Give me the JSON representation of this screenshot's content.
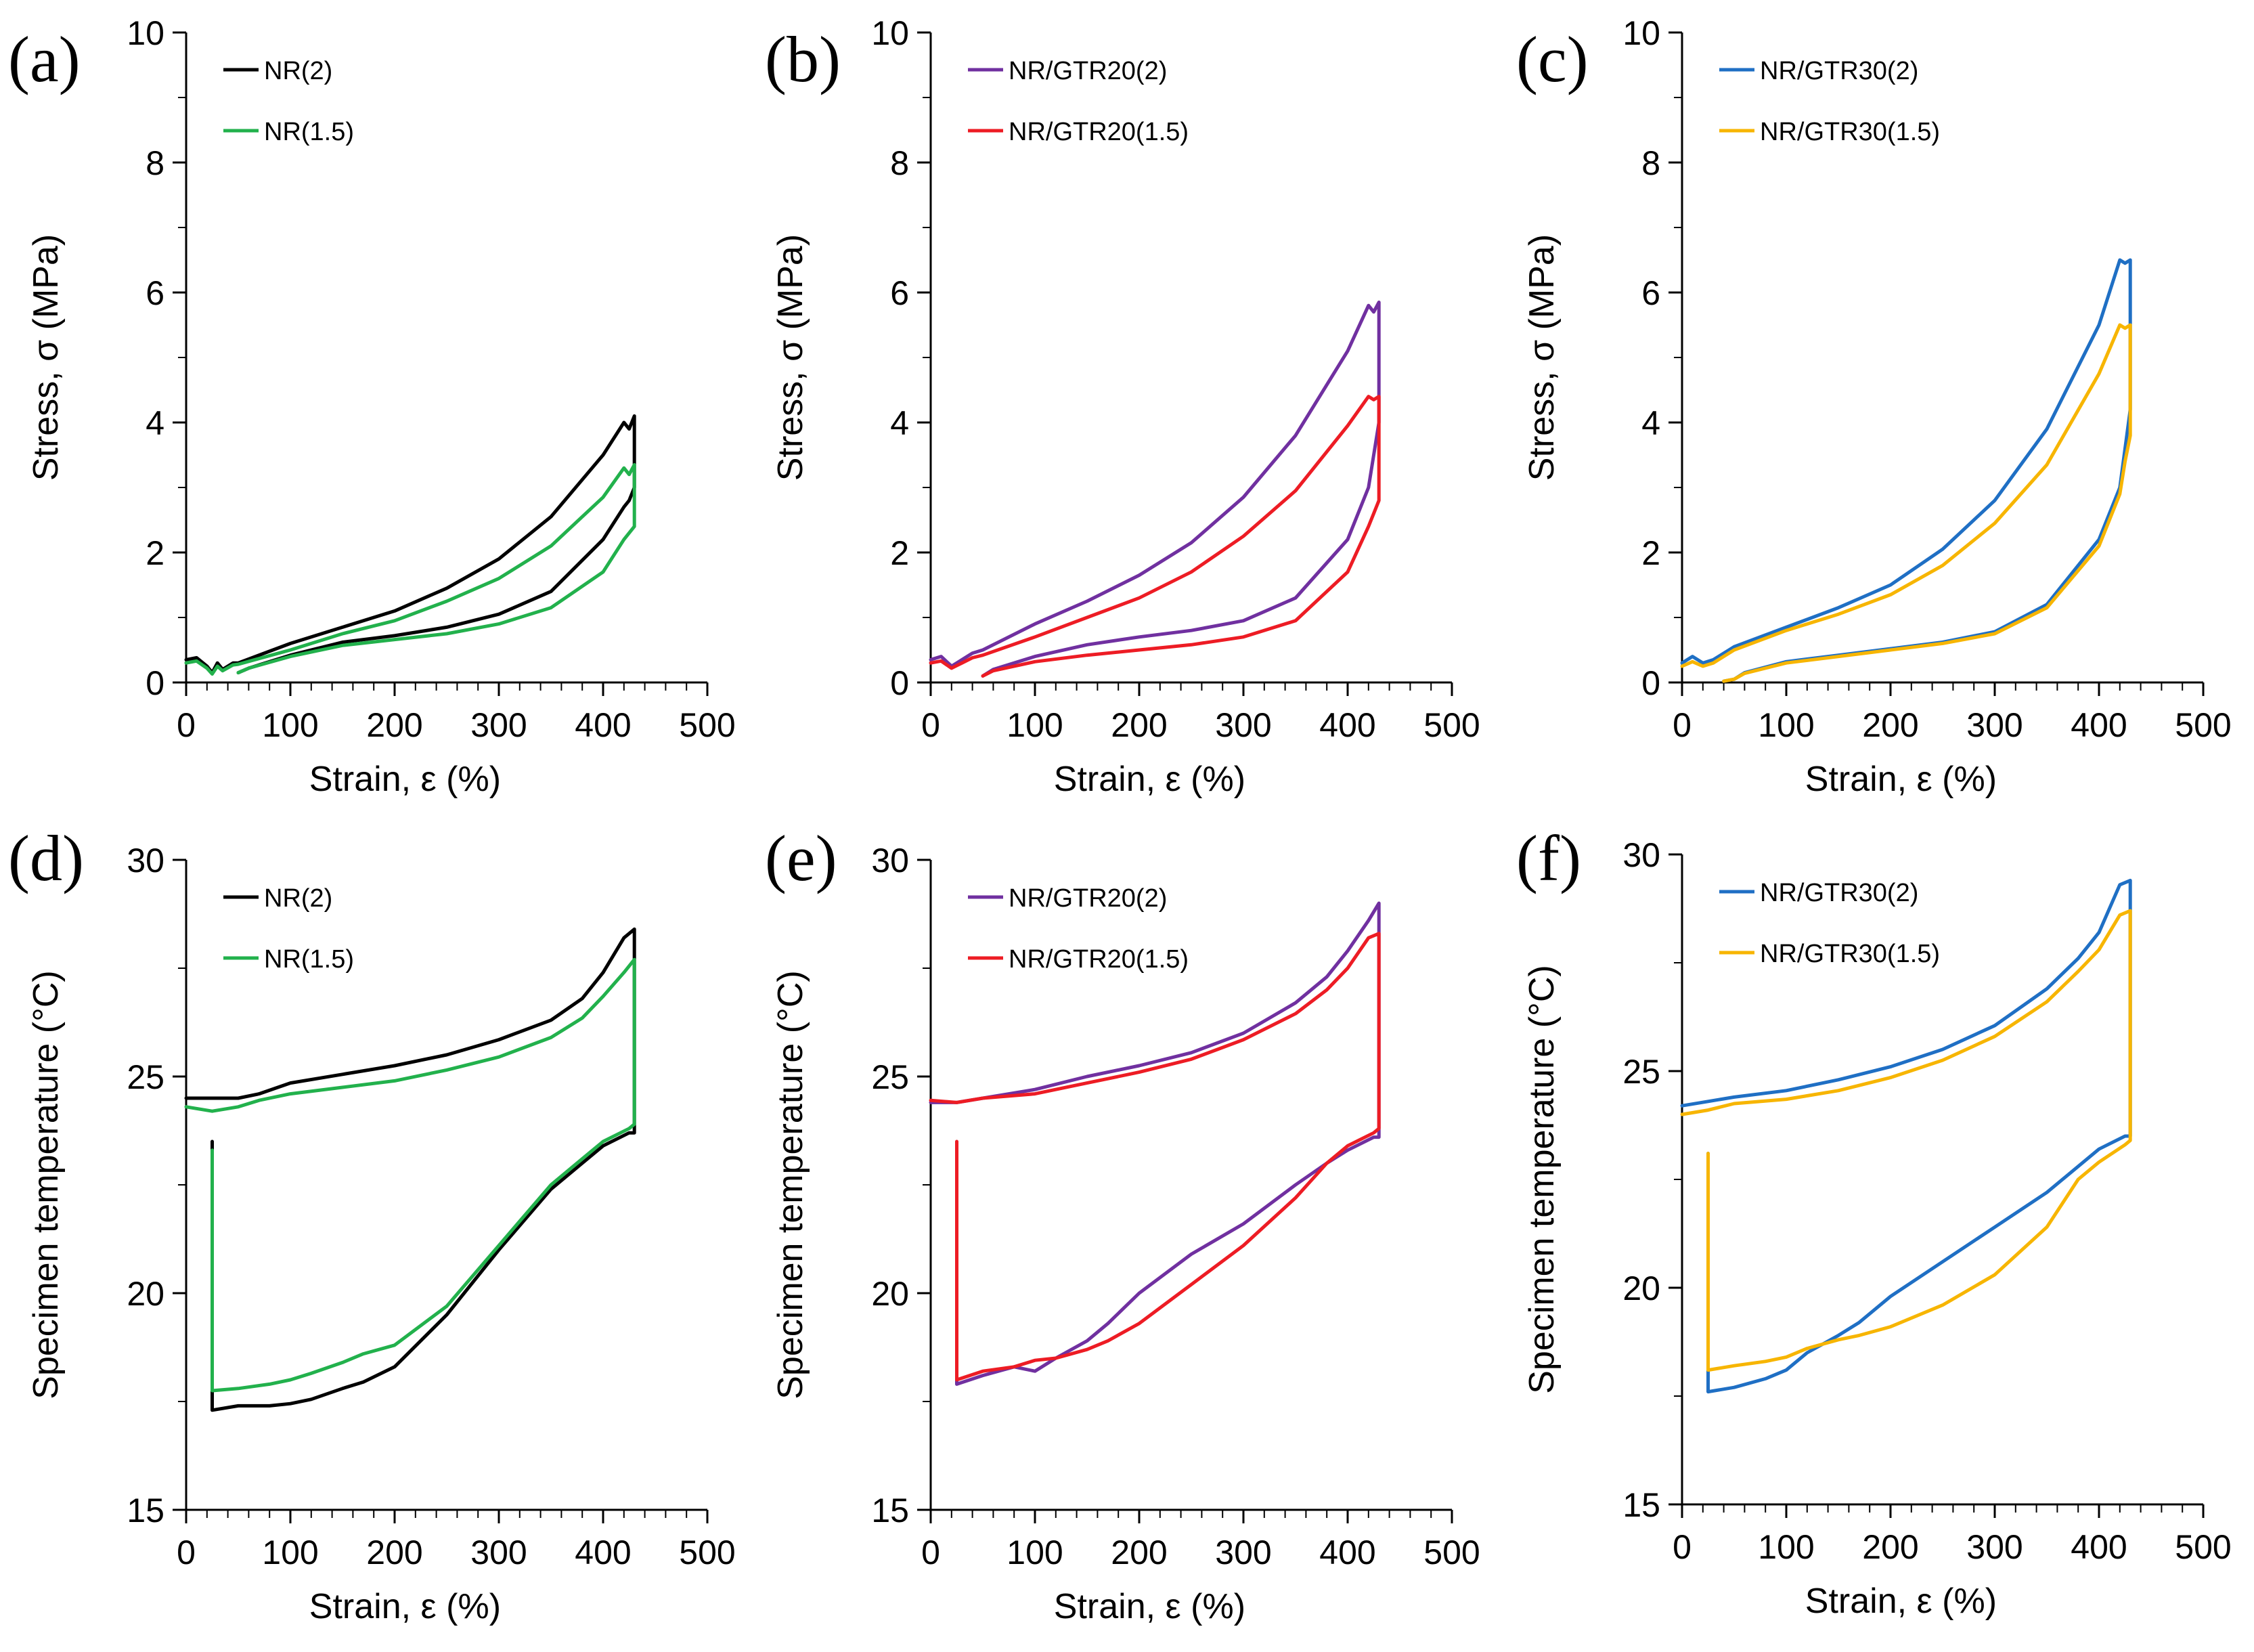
{
  "chart_data": [
    {
      "type": "line",
      "panel_label": "(a)",
      "xlabel": "Strain, ε (%)",
      "ylabel": "Stress, σ (MPa)",
      "xlim": [
        0,
        500
      ],
      "ylim": [
        0,
        10
      ],
      "xticks": [
        "0",
        "100",
        "200",
        "300",
        "400",
        "500"
      ],
      "yticks": [
        "0",
        "2",
        "4",
        "6",
        "8",
        "10"
      ],
      "legend_position": "top-left",
      "series": [
        {
          "name": "NR(2)",
          "color": "#000000",
          "x": [
            0,
            10,
            20,
            25,
            30,
            35,
            45,
            50,
            100,
            150,
            200,
            250,
            300,
            350,
            400,
            420,
            425,
            430,
            430,
            425,
            420,
            400,
            350,
            300,
            250,
            200,
            150,
            100,
            60,
            50
          ],
          "y": [
            0.35,
            0.38,
            0.25,
            0.15,
            0.3,
            0.2,
            0.3,
            0.3,
            0.6,
            0.85,
            1.1,
            1.45,
            1.9,
            2.55,
            3.5,
            4.0,
            3.9,
            4.1,
            3.0,
            2.8,
            2.7,
            2.2,
            1.4,
            1.05,
            0.85,
            0.72,
            0.62,
            0.42,
            0.22,
            0.15
          ]
        },
        {
          "name": "NR(1.5)",
          "color": "#22b14c",
          "x": [
            0,
            10,
            20,
            25,
            30,
            35,
            45,
            50,
            100,
            150,
            200,
            250,
            300,
            350,
            400,
            420,
            425,
            430,
            430,
            425,
            420,
            400,
            350,
            300,
            250,
            200,
            150,
            100,
            60,
            50
          ],
          "y": [
            0.3,
            0.33,
            0.22,
            0.13,
            0.25,
            0.18,
            0.27,
            0.28,
            0.5,
            0.75,
            0.95,
            1.25,
            1.6,
            2.1,
            2.85,
            3.3,
            3.2,
            3.35,
            2.4,
            2.3,
            2.2,
            1.7,
            1.15,
            0.9,
            0.75,
            0.66,
            0.57,
            0.4,
            0.22,
            0.15
          ]
        }
      ]
    },
    {
      "type": "line",
      "panel_label": "(b)",
      "xlabel": "Strain, ε (%)",
      "ylabel": "Stress, σ (MPa)",
      "xlim": [
        0,
        500
      ],
      "ylim": [
        0,
        10
      ],
      "xticks": [
        "0",
        "100",
        "200",
        "300",
        "400",
        "500"
      ],
      "yticks": [
        "0",
        "2",
        "4",
        "6",
        "8",
        "10"
      ],
      "legend_position": "top-left",
      "series": [
        {
          "name": "NR/GTR20(2)",
          "color": "#7030a0",
          "x": [
            0,
            10,
            20,
            25,
            30,
            40,
            50,
            100,
            150,
            200,
            250,
            300,
            350,
            400,
            420,
            425,
            430,
            430,
            425,
            420,
            400,
            350,
            300,
            250,
            200,
            150,
            100,
            60,
            50
          ],
          "y": [
            0.35,
            0.4,
            0.25,
            0.3,
            0.35,
            0.45,
            0.5,
            0.9,
            1.25,
            1.65,
            2.15,
            2.85,
            3.8,
            5.1,
            5.8,
            5.7,
            5.85,
            4.0,
            3.5,
            3.0,
            2.2,
            1.3,
            0.95,
            0.8,
            0.7,
            0.58,
            0.4,
            0.2,
            0.1
          ]
        },
        {
          "name": "NR/GTR20(1.5)",
          "color": "#ed1c24",
          "x": [
            0,
            10,
            20,
            25,
            30,
            40,
            50,
            100,
            150,
            200,
            250,
            300,
            350,
            400,
            420,
            425,
            430,
            430,
            425,
            420,
            400,
            350,
            300,
            250,
            200,
            150,
            100,
            60,
            50
          ],
          "y": [
            0.3,
            0.33,
            0.22,
            0.26,
            0.3,
            0.38,
            0.42,
            0.7,
            1.0,
            1.3,
            1.7,
            2.25,
            2.95,
            3.95,
            4.4,
            4.35,
            4.4,
            2.8,
            2.6,
            2.4,
            1.7,
            0.95,
            0.7,
            0.58,
            0.5,
            0.42,
            0.32,
            0.18,
            0.1
          ]
        }
      ]
    },
    {
      "type": "line",
      "panel_label": "(c)",
      "xlabel": "Strain, ε (%)",
      "ylabel": "Stress, σ (MPa)",
      "xlim": [
        0,
        500
      ],
      "ylim": [
        0,
        10
      ],
      "xticks": [
        "0",
        "100",
        "200",
        "300",
        "400",
        "500"
      ],
      "yticks": [
        "0",
        "2",
        "4",
        "6",
        "8",
        "10"
      ],
      "legend_position": "top-left",
      "series": [
        {
          "name": "NR/GTR30(2)",
          "color": "#1f6fc4",
          "x": [
            0,
            10,
            20,
            30,
            50,
            100,
            150,
            200,
            250,
            300,
            350,
            400,
            420,
            425,
            430,
            430,
            425,
            420,
            400,
            350,
            300,
            250,
            200,
            150,
            100,
            60,
            50,
            40
          ],
          "y": [
            0.3,
            0.4,
            0.3,
            0.35,
            0.55,
            0.85,
            1.15,
            1.5,
            2.05,
            2.8,
            3.9,
            5.5,
            6.5,
            6.45,
            6.5,
            4.2,
            3.6,
            3.0,
            2.2,
            1.2,
            0.78,
            0.62,
            0.52,
            0.42,
            0.32,
            0.15,
            0.05,
            0.02
          ]
        },
        {
          "name": "NR/GTR30(1.5)",
          "color": "#f7b500",
          "x": [
            0,
            10,
            20,
            30,
            50,
            100,
            150,
            200,
            250,
            300,
            350,
            400,
            420,
            425,
            430,
            430,
            425,
            420,
            400,
            350,
            300,
            250,
            200,
            150,
            100,
            60,
            50,
            40
          ],
          "y": [
            0.25,
            0.32,
            0.25,
            0.3,
            0.5,
            0.8,
            1.05,
            1.35,
            1.8,
            2.45,
            3.35,
            4.75,
            5.5,
            5.45,
            5.5,
            3.8,
            3.4,
            2.9,
            2.1,
            1.15,
            0.75,
            0.6,
            0.5,
            0.4,
            0.3,
            0.14,
            0.05,
            0.02
          ]
        }
      ]
    },
    {
      "type": "line",
      "panel_label": "(d)",
      "xlabel": "Strain, ε (%)",
      "ylabel": "Specimen temperature (°C)",
      "xlim": [
        0,
        500
      ],
      "ylim": [
        15,
        30
      ],
      "xticks": [
        "0",
        "100",
        "200",
        "300",
        "400",
        "500"
      ],
      "yticks": [
        "15",
        "20",
        "25",
        "30"
      ],
      "legend_position": "top-left",
      "series": [
        {
          "name": "NR(2)",
          "color": "#000000",
          "x": [
            0,
            25,
            50,
            70,
            100,
            150,
            200,
            250,
            300,
            350,
            380,
            400,
            420,
            430,
            430,
            425,
            400,
            380,
            350,
            300,
            250,
            200,
            170,
            150,
            120,
            100,
            80,
            50,
            25,
            25
          ],
          "y": [
            24.5,
            24.5,
            24.5,
            24.6,
            24.85,
            25.05,
            25.25,
            25.5,
            25.85,
            26.3,
            26.8,
            27.4,
            28.2,
            28.4,
            23.7,
            23.7,
            23.4,
            23.0,
            22.4,
            21.0,
            19.5,
            18.3,
            17.95,
            17.8,
            17.55,
            17.45,
            17.4,
            17.4,
            17.3,
            23.5
          ]
        },
        {
          "name": "NR(1.5)",
          "color": "#22b14c",
          "x": [
            0,
            25,
            50,
            70,
            100,
            150,
            200,
            250,
            300,
            350,
            380,
            400,
            420,
            430,
            430,
            425,
            400,
            380,
            350,
            300,
            250,
            200,
            170,
            150,
            120,
            100,
            80,
            50,
            25,
            25
          ],
          "y": [
            24.3,
            24.2,
            24.3,
            24.45,
            24.6,
            24.75,
            24.9,
            25.15,
            25.45,
            25.9,
            26.35,
            26.85,
            27.4,
            27.7,
            23.9,
            23.8,
            23.5,
            23.1,
            22.5,
            21.1,
            19.7,
            18.8,
            18.6,
            18.4,
            18.15,
            18.0,
            17.9,
            17.8,
            17.75,
            23.3
          ]
        }
      ]
    },
    {
      "type": "line",
      "panel_label": "(e)",
      "xlabel": "Strain, ε (%)",
      "ylabel": "Specimen temperature (°C)",
      "xlim": [
        0,
        500
      ],
      "ylim": [
        15,
        30
      ],
      "xticks": [
        "0",
        "100",
        "200",
        "300",
        "400",
        "500"
      ],
      "yticks": [
        "15",
        "20",
        "25",
        "30"
      ],
      "legend_position": "top-left",
      "series": [
        {
          "name": "NR/GTR20(2)",
          "color": "#7030a0",
          "x": [
            0,
            25,
            50,
            100,
            150,
            200,
            250,
            300,
            350,
            380,
            400,
            420,
            430,
            430,
            425,
            400,
            380,
            350,
            300,
            250,
            200,
            170,
            150,
            120,
            100,
            80,
            50,
            25,
            25
          ],
          "y": [
            24.4,
            24.4,
            24.5,
            24.7,
            25.0,
            25.25,
            25.55,
            26.0,
            26.7,
            27.3,
            27.9,
            28.6,
            29.0,
            23.6,
            23.6,
            23.3,
            23.0,
            22.5,
            21.6,
            20.9,
            20.0,
            19.3,
            18.9,
            18.5,
            18.2,
            18.3,
            18.1,
            17.9,
            23.3
          ]
        },
        {
          "name": "NR/GTR20(1.5)",
          "color": "#ed1c24",
          "x": [
            0,
            25,
            50,
            100,
            150,
            200,
            250,
            300,
            350,
            380,
            400,
            420,
            430,
            430,
            425,
            400,
            380,
            350,
            300,
            250,
            200,
            170,
            150,
            120,
            100,
            80,
            50,
            25,
            25
          ],
          "y": [
            24.45,
            24.4,
            24.5,
            24.6,
            24.85,
            25.1,
            25.4,
            25.85,
            26.45,
            27.0,
            27.5,
            28.2,
            28.3,
            23.8,
            23.7,
            23.4,
            23.0,
            22.2,
            21.1,
            20.2,
            19.3,
            18.9,
            18.7,
            18.5,
            18.45,
            18.3,
            18.2,
            18.0,
            23.5
          ]
        }
      ]
    },
    {
      "type": "line",
      "panel_label": "(f)",
      "xlabel": "Strain, ε (%)",
      "ylabel": "Specimen temperature (°C)",
      "xlim": [
        0,
        500
      ],
      "ylim": [
        15,
        30
      ],
      "xticks": [
        "0",
        "100",
        "200",
        "300",
        "400",
        "500"
      ],
      "yticks": [
        "15",
        "20",
        "25",
        "30"
      ],
      "legend_position": "top-left",
      "series": [
        {
          "name": "NR/GTR30(2)",
          "color": "#1f6fc4",
          "x": [
            0,
            25,
            50,
            100,
            150,
            200,
            250,
            300,
            350,
            380,
            400,
            420,
            430,
            430,
            425,
            400,
            380,
            350,
            300,
            250,
            200,
            170,
            150,
            120,
            100,
            80,
            50,
            25,
            25
          ],
          "y": [
            24.2,
            24.3,
            24.4,
            24.55,
            24.8,
            25.1,
            25.5,
            26.05,
            26.9,
            27.6,
            28.2,
            29.3,
            29.4,
            23.5,
            23.5,
            23.2,
            22.8,
            22.2,
            21.4,
            20.6,
            19.8,
            19.2,
            18.9,
            18.5,
            18.1,
            17.9,
            17.7,
            17.6,
            23.1
          ]
        },
        {
          "name": "NR/GTR30(1.5)",
          "color": "#f7b500",
          "x": [
            0,
            25,
            50,
            100,
            150,
            200,
            250,
            300,
            350,
            380,
            400,
            420,
            430,
            430,
            425,
            400,
            380,
            350,
            300,
            250,
            200,
            170,
            150,
            120,
            100,
            80,
            50,
            25,
            25
          ],
          "y": [
            24.0,
            24.1,
            24.25,
            24.35,
            24.55,
            24.85,
            25.25,
            25.8,
            26.6,
            27.3,
            27.8,
            28.6,
            28.7,
            23.4,
            23.3,
            22.9,
            22.5,
            21.4,
            20.3,
            19.6,
            19.1,
            18.9,
            18.8,
            18.6,
            18.4,
            18.3,
            18.2,
            18.1,
            23.1
          ]
        }
      ]
    }
  ]
}
